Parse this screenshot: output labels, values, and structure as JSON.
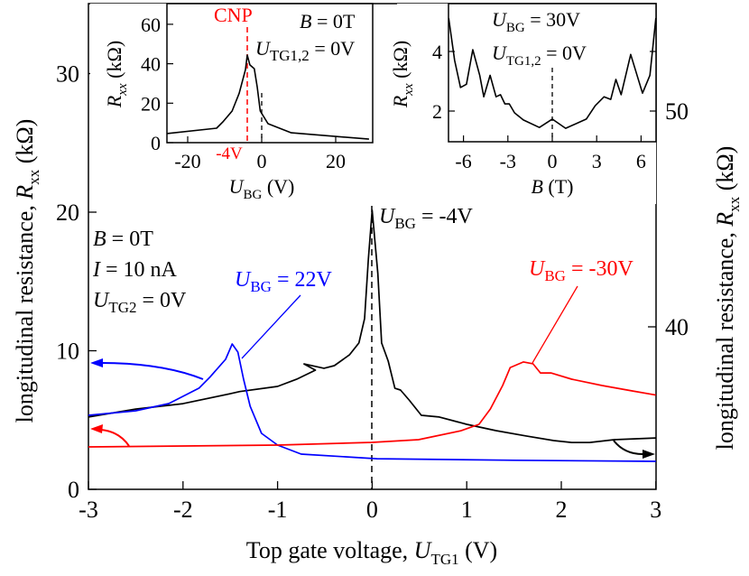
{
  "chart_data": [
    {
      "type": "line",
      "xlabel": {
        "main": "Top gate voltage, ",
        "var": "U",
        "sub": "TG1",
        "unit": " (V)"
      },
      "ylabel_left": {
        "main": "longitudinal resistance, ",
        "var": "R",
        "sub": "xx",
        "unit": " (kΩ)"
      },
      "ylabel_right": {
        "main": "longitudinal resistance, ",
        "var": "R",
        "sub": "xx",
        "unit": " (kΩ)"
      },
      "xlim": [
        -3,
        3
      ],
      "ylim_left": [
        0,
        35
      ],
      "ylim_right": [
        32.5,
        55
      ],
      "xticks": [
        -3,
        -2,
        -1,
        0,
        1,
        2,
        3
      ],
      "yticks_left": [
        0,
        10,
        20,
        30
      ],
      "yticks_right": [
        40,
        50
      ],
      "grid": false,
      "series": [
        {
          "color": "#000000",
          "axis": "right",
          "x": [
            -3,
            -2.5,
            -2,
            -1.5,
            -1.4,
            -1,
            -0.8,
            -0.6,
            -0.72,
            -0.51,
            -0.4,
            -0.24,
            -0.14,
            -0.08,
            -0.04,
            0,
            0.06,
            0.1,
            0.17,
            0.24,
            0.3,
            0.39,
            0.52,
            0.71,
            1.0,
            1.31,
            1.63,
            1.92,
            2.11,
            2.3,
            2.56,
            3.0
          ],
          "y": [
            35.82,
            36.19,
            36.44,
            36.9,
            37.0,
            37.24,
            37.57,
            37.99,
            38.28,
            38.08,
            38.2,
            38.7,
            39.25,
            40.38,
            43.14,
            45.4,
            42.47,
            39.25,
            38.41,
            37.15,
            37.07,
            36.61,
            35.9,
            35.82,
            35.48,
            35.19,
            34.94,
            34.73,
            34.64,
            34.64,
            34.77,
            34.85
          ]
        },
        {
          "color": "#0000ff",
          "axis": "left",
          "x": [
            -3,
            -2.5,
            -2.15,
            -1.83,
            -1.71,
            -1.55,
            -1.48,
            -1.42,
            -1.36,
            -1.29,
            -1.17,
            -1.0,
            -0.75,
            0.05,
            1.5,
            3.0
          ],
          "y": [
            5.34,
            5.67,
            6.19,
            7.3,
            8.14,
            9.38,
            10.49,
            9.9,
            7.95,
            6.0,
            4.04,
            3.19,
            2.54,
            2.21,
            2.1,
            2.02
          ]
        },
        {
          "color": "#ff0000",
          "axis": "left",
          "x": [
            -3,
            -1,
            0,
            0.49,
            0.94,
            1.13,
            1.25,
            1.38,
            1.46,
            1.6,
            1.7,
            1.78,
            1.89,
            2.11,
            2.43,
            2.75,
            3.0
          ],
          "y": [
            3.06,
            3.19,
            3.39,
            3.58,
            4.23,
            4.69,
            5.8,
            7.49,
            8.79,
            9.19,
            9.06,
            8.4,
            8.4,
            7.95,
            7.49,
            7.1,
            6.8
          ]
        }
      ],
      "annotations": {
        "black": {
          "var": "U",
          "sub": "BG",
          "text": " = -4V"
        },
        "red": {
          "var": "U",
          "sub": "BG",
          "text": " = -30V"
        },
        "blue": {
          "var": "U",
          "sub": "BG",
          "text": " = 22V"
        },
        "conditions": [
          {
            "var": "B",
            "sub": "",
            "text": " = 0T"
          },
          {
            "var": "I",
            "sub": "",
            "text": " = 10 nA"
          },
          {
            "var": "U",
            "sub": "TG2",
            "text": " = 0V"
          }
        ]
      }
    },
    {
      "type": "line",
      "xlabel": {
        "var": "U",
        "sub": "BG",
        "unit": " (V)"
      },
      "ylabel": {
        "var": "R",
        "sub": "xx",
        "unit": " (kΩ)"
      },
      "xlim": [
        -25.6,
        30
      ],
      "ylim": [
        0,
        70
      ],
      "xticks": [
        -20,
        0,
        20
      ],
      "yticks": [
        0,
        20,
        40,
        60
      ],
      "series": [
        {
          "color": "#000000",
          "x": [
            -25.6,
            -12.2,
            -10.5,
            -8.0,
            -6.1,
            -4.4,
            -3.9,
            -3.2,
            -2.0,
            -1.2,
            -0.4,
            1.7,
            8,
            29
          ],
          "y": [
            4.6,
            7.3,
            10.5,
            16,
            25,
            37,
            44.4,
            39.4,
            37.5,
            28,
            16,
            9.6,
            5,
            1.8
          ]
        }
      ],
      "annotations": {
        "cnp": "CNP",
        "cnp_value": "-4V",
        "cnp_color": "#ff0000",
        "cond1": {
          "var": "B",
          "text": " = 0T"
        },
        "cond2": {
          "var": "U",
          "sub": "TG1,2",
          "text": " = 0V"
        }
      }
    },
    {
      "type": "line",
      "xlabel": {
        "var": "B",
        "unit": " (T)"
      },
      "ylabel": {
        "var": "R",
        "sub": "xx",
        "unit": " (kΩ)"
      },
      "xlim": [
        -7,
        7
      ],
      "ylim": [
        0.97,
        5.6
      ],
      "xticks": [
        -6,
        -3,
        0,
        3,
        6
      ],
      "yticks": [
        2,
        4
      ],
      "series": [
        {
          "color": "#000000",
          "x": [
            -7.0,
            -6.6,
            -6.2,
            -5.8,
            -5.37,
            -4.9,
            -4.63,
            -4.2,
            -3.8,
            -3.5,
            -3.2,
            -2.9,
            -2.55,
            -1.95,
            -0.87,
            0,
            0.9,
            2.3,
            2.9,
            3.5,
            3.95,
            4.3,
            4.65,
            5.3,
            6.1,
            6.6,
            7.0
          ],
          "y": [
            5.12,
            3.7,
            2.79,
            2.9,
            4.06,
            3.2,
            2.48,
            3.2,
            2.48,
            2.55,
            2.24,
            2.24,
            1.94,
            1.7,
            1.45,
            1.73,
            1.42,
            1.73,
            2.18,
            2.48,
            2.39,
            3.06,
            2.55,
            3.9,
            2.6,
            3.2,
            5.12
          ]
        }
      ],
      "annotations": {
        "cond1": {
          "var": "U",
          "sub": "BG",
          "text": " = 30V"
        },
        "cond2": {
          "var": "U",
          "sub": "TG1,2",
          "text": " = 0V"
        }
      }
    }
  ]
}
